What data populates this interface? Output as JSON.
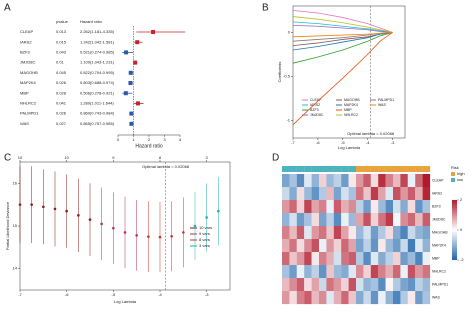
{
  "chart_data": [
    {
      "label": "A",
      "type": "forest",
      "headers": [
        "pvalue",
        "Hazard ratio"
      ],
      "xlabel": "Hazard ratio",
      "categories": [
        "CLEAP",
        "IARS2",
        "BZF3",
        "JMJD8C",
        "MAGOHB",
        "MAP2K4",
        "MBP",
        "NHLRC2",
        "PALMPD1",
        "WAS"
      ],
      "pvalues": [
        0.013,
        0.015,
        0.043,
        0.01,
        0.045,
        0.026,
        0.028,
        0.041,
        0.026,
        0.027
      ],
      "values": [
        2.262,
        1.242,
        0.521,
        1.109,
        0.822,
        0.803,
        0.506,
        1.289,
        0.86,
        0.865
      ],
      "lower": [
        1.181,
        1.042,
        0.274,
        1.043,
        0.704,
        0.688,
        0.278,
        1.011,
        0.743,
        0.757
      ],
      "upper": [
        4.335,
        1.581,
        0.985,
        1.231,
        0.995,
        0.974,
        0.921,
        1.644,
        0.984,
        0.985
      ],
      "value_labels": [
        "2.262(1.181-4.335)",
        "1.242(1.042-1.581)",
        "0.521(0.274-0.985)",
        "1.109(1.043-1.231)",
        "0.822(0.704-0.995)",
        "0.803(0.688-0.974)",
        "0.506(0.278-0.921)",
        "1.289(1.011-1.644)",
        "0.860(0.743-0.984)",
        "0.865(0.757-0.985)"
      ],
      "xlim": [
        0,
        4
      ],
      "xticks": [
        0,
        1,
        2,
        3,
        4
      ],
      "ref_line": 1,
      "high_color": "#c0272d",
      "low_color": "#2b5ba8"
    },
    {
      "label": "B",
      "type": "line",
      "xlabel": "Log Lambda",
      "ylabel": "Coefficients",
      "x": [
        -7,
        -6,
        -5,
        -4,
        -3.5,
        -3
      ],
      "xlim": [
        -7,
        -2.5
      ],
      "xticks": [
        -7,
        -6,
        -5,
        -4,
        -3
      ],
      "ylim": [
        -1.2,
        0.3
      ],
      "yticks": [
        -1,
        -0.5,
        0
      ],
      "vline": -3.88,
      "annotation": "Optimal lambda = 0.02068",
      "series": [
        {
          "name": "CLEAP",
          "color": "#e377c2",
          "values": [
            0.25,
            0.22,
            0.17,
            0.1,
            0.05,
            0
          ]
        },
        {
          "name": "IARS2",
          "color": "#17becf",
          "values": [
            0.12,
            0.1,
            0.07,
            0.04,
            0.02,
            0
          ]
        },
        {
          "name": "BZF3",
          "color": "#2ca02c",
          "values": [
            -0.35,
            -0.28,
            -0.2,
            -0.1,
            -0.04,
            0
          ]
        },
        {
          "name": "JMJD8C",
          "color": "#9467bd",
          "values": [
            0.08,
            0.07,
            0.05,
            0.03,
            0.01,
            0
          ]
        },
        {
          "name": "MAGOHB",
          "color": "#8c564b",
          "values": [
            -0.15,
            -0.12,
            -0.08,
            -0.05,
            -0.02,
            0
          ]
        },
        {
          "name": "MAP2K4",
          "color": "#1f77b4",
          "values": [
            -0.2,
            -0.16,
            -0.11,
            -0.06,
            -0.02,
            0
          ]
        },
        {
          "name": "MBP",
          "color": "#e6550d",
          "values": [
            -1.05,
            -0.78,
            -0.52,
            -0.25,
            -0.1,
            0
          ]
        },
        {
          "name": "NHLRC2",
          "color": "#bcbd22",
          "values": [
            0.18,
            0.15,
            0.11,
            0.06,
            0.03,
            0
          ]
        },
        {
          "name": "PALMPD1",
          "color": "#7f7f7f",
          "values": [
            -0.1,
            -0.08,
            -0.06,
            -0.03,
            -0.01,
            0
          ]
        },
        {
          "name": "WAS",
          "color": "#ff7f0e",
          "values": [
            -0.05,
            -0.04,
            -0.03,
            -0.02,
            -0.01,
            0
          ]
        }
      ]
    },
    {
      "label": "C",
      "type": "errorbar",
      "xlabel": "Log Lambda",
      "ylabel": "Partial Likelihood Deviance",
      "xlim": [
        -7,
        -2.5
      ],
      "xticks": [
        -7,
        -6,
        -5,
        -4,
        -3
      ],
      "ylim": [
        13.5,
        16.5
      ],
      "yticks": [
        14,
        15,
        16
      ],
      "top_ticks": [
        {
          "value": -7,
          "label": "10"
        },
        {
          "value": -6,
          "label": "10"
        },
        {
          "value": -5,
          "label": "9"
        },
        {
          "value": -4,
          "label": "8"
        },
        {
          "value": -3,
          "label": "3"
        }
      ],
      "vline": -3.88,
      "annotation": "Optimal lambda = 0.02068",
      "series": [
        {
          "name": "10 vars",
          "color": "#8b1a1a",
          "x": [
            -7,
            -6.75,
            -6.5,
            -6.25,
            -6,
            -5.75,
            -5.5
          ],
          "values": [
            15.5,
            15.5,
            15.45,
            15.4,
            15.35,
            15.25,
            15.15
          ],
          "err": [
            0.9,
            0.9,
            0.88,
            0.88,
            0.86,
            0.86,
            0.85
          ]
        },
        {
          "name": "9 vars",
          "color": "#b03060",
          "x": [
            -5.25,
            -5,
            -4.75,
            -4.5
          ],
          "values": [
            15.05,
            14.95,
            14.85,
            14.78
          ],
          "err": [
            0.85,
            0.84,
            0.84,
            0.83
          ]
        },
        {
          "name": "8 vars",
          "color": "#cd3333",
          "x": [
            -4.25,
            -4,
            -3.75,
            -3.5
          ],
          "values": [
            14.75,
            14.74,
            14.76,
            14.85
          ],
          "err": [
            0.83,
            0.82,
            0.82,
            0.82
          ]
        },
        {
          "name": "3 vars",
          "color": "#20b2aa",
          "x": [
            -3.25,
            -3,
            -2.75
          ],
          "values": [
            15.0,
            15.2,
            15.35
          ],
          "err": [
            0.8,
            0.8,
            0.8
          ]
        }
      ]
    },
    {
      "label": "D",
      "type": "heatmap",
      "rows": [
        "CLEAP",
        "IARS2",
        "BZF3",
        "JMJD8C",
        "MAGOHB",
        "MAP2K4",
        "MBP",
        "NHLRC2",
        "PALMPD1",
        "WAS"
      ],
      "values": [
        [
          -1.2,
          -0.8,
          -1.5,
          -0.3,
          -1.0,
          0.4,
          -0.9,
          -0.6,
          -1.3,
          0.2,
          0.9,
          1.4,
          0.3,
          1.8,
          1.1,
          0.6,
          1.6,
          -0.2,
          1.3,
          2.0
        ],
        [
          -0.5,
          -1.1,
          0.3,
          -0.9,
          -1.4,
          -0.7,
          0.6,
          -1.2,
          -0.4,
          -0.8,
          1.2,
          0.5,
          1.7,
          0.8,
          -0.3,
          1.5,
          0.9,
          1.4,
          0.7,
          1.9
        ],
        [
          0.9,
          1.3,
          0.4,
          1.6,
          0.8,
          1.1,
          -0.2,
          1.4,
          0.7,
          1.0,
          -0.6,
          -1.3,
          0.2,
          -0.9,
          -1.5,
          -0.4,
          -1.1,
          0.3,
          -1.4,
          -0.8
        ],
        [
          -1.0,
          -0.4,
          -1.3,
          -0.8,
          0.3,
          -1.2,
          -0.6,
          -1.5,
          -0.2,
          -0.9,
          0.8,
          1.5,
          0.4,
          1.2,
          1.7,
          -0.1,
          1.0,
          1.3,
          0.6,
          1.4
        ],
        [
          1.1,
          0.6,
          1.4,
          -0.3,
          0.9,
          1.2,
          0.5,
          1.6,
          0.8,
          0.2,
          -0.9,
          -0.4,
          -1.3,
          -0.7,
          0.3,
          -1.1,
          -1.6,
          -0.5,
          -1.0,
          -1.2
        ],
        [
          0.7,
          1.2,
          0.3,
          1.0,
          1.5,
          -0.2,
          0.9,
          0.4,
          1.3,
          0.8,
          -1.2,
          -0.6,
          -1.4,
          0.2,
          -0.9,
          -1.3,
          -0.5,
          -1.7,
          -0.3,
          -1.0
        ],
        [
          1.3,
          0.5,
          0.9,
          1.6,
          0.2,
          1.1,
          0.7,
          -0.4,
          1.2,
          1.4,
          -0.7,
          -1.5,
          -0.3,
          -1.1,
          -0.6,
          0.4,
          -1.3,
          -0.9,
          -1.6,
          -0.2
        ],
        [
          -0.8,
          -1.3,
          -0.2,
          -1.0,
          -0.6,
          -1.4,
          0.5,
          -0.9,
          -1.1,
          -0.3,
          1.0,
          0.4,
          1.6,
          1.1,
          0.7,
          1.3,
          -0.2,
          1.5,
          0.9,
          1.2
        ],
        [
          0.6,
          1.0,
          1.4,
          0.3,
          0.8,
          -0.5,
          1.2,
          0.9,
          0.4,
          1.5,
          -0.4,
          -1.0,
          -0.8,
          -1.5,
          0.1,
          -0.7,
          -1.2,
          -1.4,
          -0.6,
          -0.9
        ],
        [
          0.9,
          0.3,
          1.1,
          1.4,
          0.6,
          1.0,
          -0.3,
          0.7,
          1.3,
          0.5,
          -1.1,
          -0.5,
          -1.4,
          -0.2,
          -1.0,
          -1.6,
          -0.7,
          0.2,
          -1.3,
          -0.8
        ]
      ],
      "annotation": {
        "title": "Risk",
        "categories": [
          "high",
          "low"
        ],
        "colors": [
          "#e8a33d",
          "#4fb3bf"
        ],
        "values": [
          "low",
          "low",
          "low",
          "low",
          "low",
          "low",
          "low",
          "low",
          "low",
          "low",
          "high",
          "high",
          "high",
          "high",
          "high",
          "high",
          "high",
          "high",
          "high",
          "high"
        ]
      },
      "clim": [
        -2,
        2
      ],
      "cticks": [
        -2,
        0,
        2
      ],
      "low_color": "#2166ac",
      "mid_color": "#ffffff",
      "high_color": "#b2182b"
    }
  ]
}
